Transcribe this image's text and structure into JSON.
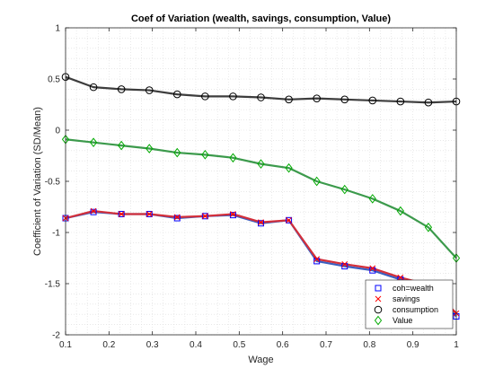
{
  "chart_data": {
    "type": "line",
    "title": "Coef of Variation (wealth, savings, consumption, Value)",
    "xlabel": "Wage",
    "ylabel": "Coefficient of Variation (SD/Mean)",
    "xlim": [
      0.1,
      1
    ],
    "ylim": [
      -2,
      1
    ],
    "xticks": [
      0.1,
      0.2,
      0.3,
      0.4,
      0.5,
      0.6,
      0.7,
      0.8,
      0.9,
      1
    ],
    "xtick_labels": [
      "0.1",
      "0.2",
      "0.3",
      "0.4",
      "0.5",
      "0.6",
      "0.7",
      "0.8",
      "0.9",
      "1"
    ],
    "yticks": [
      -2,
      -1.5,
      -1,
      -0.5,
      0,
      0.5,
      1
    ],
    "ytick_labels": [
      "-2",
      "-1.5",
      "-1",
      "-0.5",
      "0",
      "0.5",
      "1"
    ],
    "grid": "minor dotted",
    "legend_position": "bottom-right",
    "x": [
      0.1,
      0.1643,
      0.2286,
      0.2929,
      0.3571,
      0.4214,
      0.4857,
      0.55,
      0.6143,
      0.6786,
      0.7429,
      0.8071,
      0.8714,
      0.9357,
      1.0
    ],
    "series": [
      {
        "name": "coh=wealth",
        "marker": "square",
        "marker_color": "#0000ff",
        "line_color": "#3b5fc0",
        "values": [
          -0.86,
          -0.8,
          -0.82,
          -0.82,
          -0.86,
          -0.84,
          -0.83,
          -0.91,
          -0.88,
          -1.28,
          -1.33,
          -1.37,
          -1.46,
          -1.53,
          -1.82
        ]
      },
      {
        "name": "savings",
        "marker": "x",
        "marker_color": "#ff0000",
        "line_color": "#d32f3a",
        "values": [
          -0.86,
          -0.79,
          -0.82,
          -0.82,
          -0.85,
          -0.84,
          -0.82,
          -0.9,
          -0.88,
          -1.26,
          -1.31,
          -1.35,
          -1.44,
          -1.51,
          -1.79
        ]
      },
      {
        "name": "consumption",
        "marker": "circle",
        "marker_color": "#000000",
        "line_color": "#3d3d3d",
        "values": [
          0.52,
          0.42,
          0.4,
          0.39,
          0.35,
          0.33,
          0.33,
          0.32,
          0.3,
          0.31,
          0.3,
          0.29,
          0.28,
          0.27,
          0.28
        ]
      },
      {
        "name": "Value",
        "marker": "diamond",
        "marker_color": "#00aa00",
        "line_color": "#3c9a4c",
        "values": [
          -0.09,
          -0.12,
          -0.15,
          -0.18,
          -0.22,
          -0.24,
          -0.27,
          -0.33,
          -0.37,
          -0.5,
          -0.58,
          -0.67,
          -0.79,
          -0.95,
          -1.25
        ]
      }
    ]
  }
}
